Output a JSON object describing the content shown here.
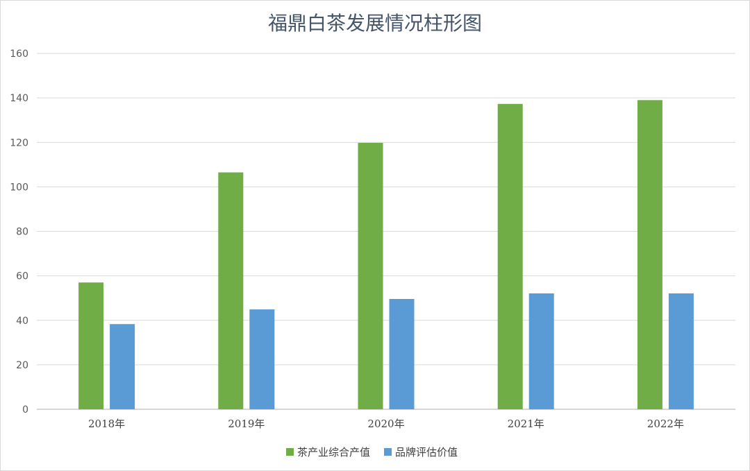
{
  "chart_data": {
    "type": "bar",
    "title": "福鼎白茶发展情况柱形图",
    "xlabel": "",
    "ylabel": "",
    "categories": [
      "2018年",
      "2019年",
      "2020年",
      "2021年",
      "2022年"
    ],
    "ylim": [
      0,
      160
    ],
    "yticks": [
      0,
      20,
      40,
      60,
      80,
      100,
      120,
      140,
      160
    ],
    "grid": true,
    "legend_position": "bottom",
    "series": [
      {
        "name": "茶产业综合产值",
        "color": "#70ad47",
        "values": [
          57,
          106.5,
          119.8,
          137.3,
          139
        ]
      },
      {
        "name": "品牌评估价值",
        "color": "#5b9bd5",
        "values": [
          38.3,
          44.9,
          49.6,
          52.1,
          52.1
        ]
      }
    ]
  }
}
